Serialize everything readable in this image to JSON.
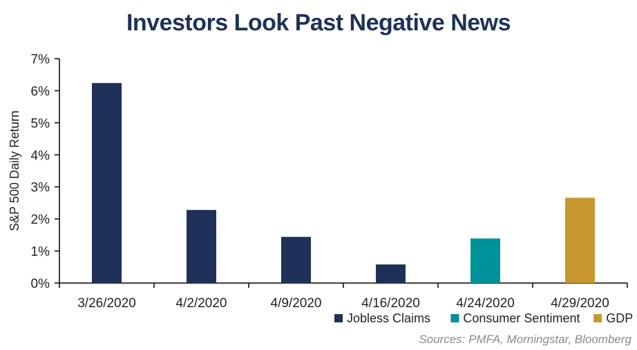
{
  "chart_data": {
    "type": "bar",
    "title": "Investors Look Past Negative News",
    "ylabel": "S&P 500 Daily Return",
    "xlabel": "",
    "ylim": [
      0,
      7
    ],
    "yticks": [
      "0%",
      "1%",
      "2%",
      "3%",
      "4%",
      "5%",
      "6%",
      "7%"
    ],
    "categories": [
      "3/26/2020",
      "4/2/2020",
      "4/9/2020",
      "4/16/2020",
      "4/24/2020",
      "4/29/2020"
    ],
    "values": [
      6.24,
      2.28,
      1.44,
      0.58,
      1.39,
      2.66
    ],
    "bar_groups": [
      "Jobless Claims",
      "Jobless Claims",
      "Jobless Claims",
      "Jobless Claims",
      "Consumer Sentiment",
      "GDP"
    ],
    "legend": [
      {
        "name": "Jobless Claims",
        "color": "#1f3158"
      },
      {
        "name": "Consumer Sentiment",
        "color": "#00929a"
      },
      {
        "name": "GDP",
        "color": "#c99730"
      }
    ],
    "legend_position": "bottom-right",
    "grid": false
  },
  "source": "Sources: PMFA, Morningstar, Bloomberg"
}
